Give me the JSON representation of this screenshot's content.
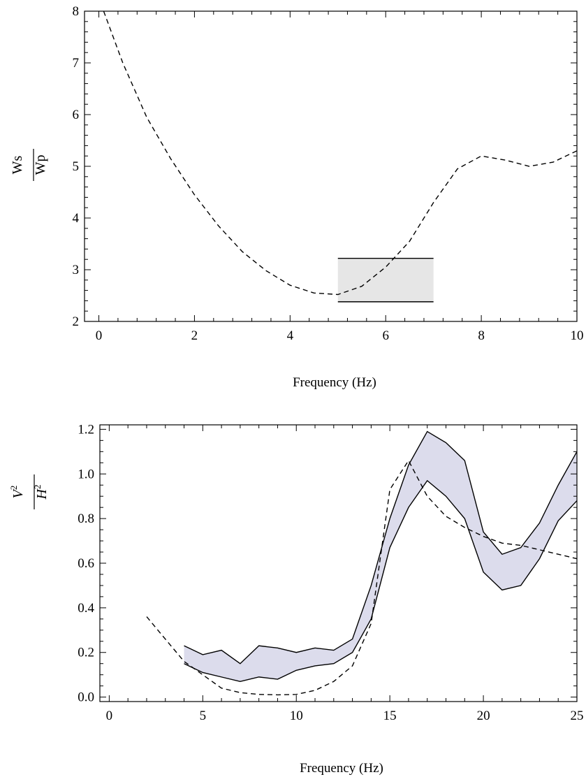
{
  "chart_data": [
    {
      "type": "line",
      "xlabel": "Frequency (Hz)",
      "ylabel": {
        "numerator": "Ws",
        "denominator": "Wp"
      },
      "xlim": [
        -0.3,
        10
      ],
      "ylim": [
        2,
        8
      ],
      "xticks": [
        "0",
        "2",
        "4",
        "6",
        "8",
        "10"
      ],
      "yticks": [
        "2",
        "3",
        "4",
        "5",
        "6",
        "7",
        "8"
      ],
      "series": [
        {
          "style": "dashed",
          "x": [
            0.1,
            0.5,
            1,
            1.5,
            2,
            2.5,
            3,
            3.5,
            4,
            4.5,
            5,
            5.5,
            6,
            6.5,
            7,
            7.5,
            8,
            8.5,
            9,
            9.5,
            10
          ],
          "y": [
            8.0,
            7.0,
            5.95,
            5.15,
            4.45,
            3.85,
            3.35,
            2.98,
            2.7,
            2.55,
            2.52,
            2.68,
            3.05,
            3.55,
            4.3,
            4.95,
            5.2,
            5.12,
            5.0,
            5.08,
            5.3
          ]
        }
      ],
      "band": {
        "x": [
          5,
          7
        ],
        "y_low": 2.38,
        "y_high": 3.22,
        "fill": "#e6e6e6"
      }
    },
    {
      "type": "line",
      "xlabel": "Frequency (Hz)",
      "ylabel": {
        "numerator": "V",
        "denominator": "H",
        "exponent": "2"
      },
      "xlim": [
        -0.5,
        25
      ],
      "ylim": [
        -0.02,
        1.22
      ],
      "xticks": [
        "0",
        "5",
        "10",
        "15",
        "20",
        "25"
      ],
      "yticks": [
        "0.0",
        "0.2",
        "0.4",
        "0.6",
        "0.8",
        "1.0",
        "1.2"
      ],
      "band": {
        "fill": "#dcdcec",
        "x": [
          4,
          5,
          6,
          7,
          8,
          9,
          10,
          11,
          12,
          13,
          14,
          15,
          16,
          17,
          18,
          19,
          20,
          21,
          22,
          23,
          24,
          25
        ],
        "upper": [
          0.23,
          0.19,
          0.21,
          0.15,
          0.23,
          0.22,
          0.2,
          0.22,
          0.21,
          0.26,
          0.5,
          0.8,
          1.04,
          1.19,
          1.14,
          1.06,
          0.74,
          0.64,
          0.67,
          0.78,
          0.95,
          1.1
        ],
        "lower": [
          0.15,
          0.11,
          0.09,
          0.07,
          0.09,
          0.08,
          0.12,
          0.14,
          0.15,
          0.2,
          0.35,
          0.67,
          0.85,
          0.97,
          0.9,
          0.8,
          0.56,
          0.48,
          0.5,
          0.62,
          0.79,
          0.88
        ]
      },
      "series": [
        {
          "style": "dashed",
          "x": [
            2,
            3,
            4,
            5,
            6,
            7,
            8,
            9,
            10,
            11,
            12,
            13,
            14,
            15,
            16,
            17,
            18,
            19,
            20,
            21,
            22,
            23,
            24,
            25
          ],
          "y": [
            0.36,
            0.26,
            0.16,
            0.1,
            0.04,
            0.02,
            0.012,
            0.01,
            0.012,
            0.03,
            0.07,
            0.14,
            0.33,
            0.93,
            1.06,
            0.9,
            0.81,
            0.76,
            0.72,
            0.69,
            0.68,
            0.66,
            0.64,
            0.62
          ]
        }
      ]
    }
  ]
}
